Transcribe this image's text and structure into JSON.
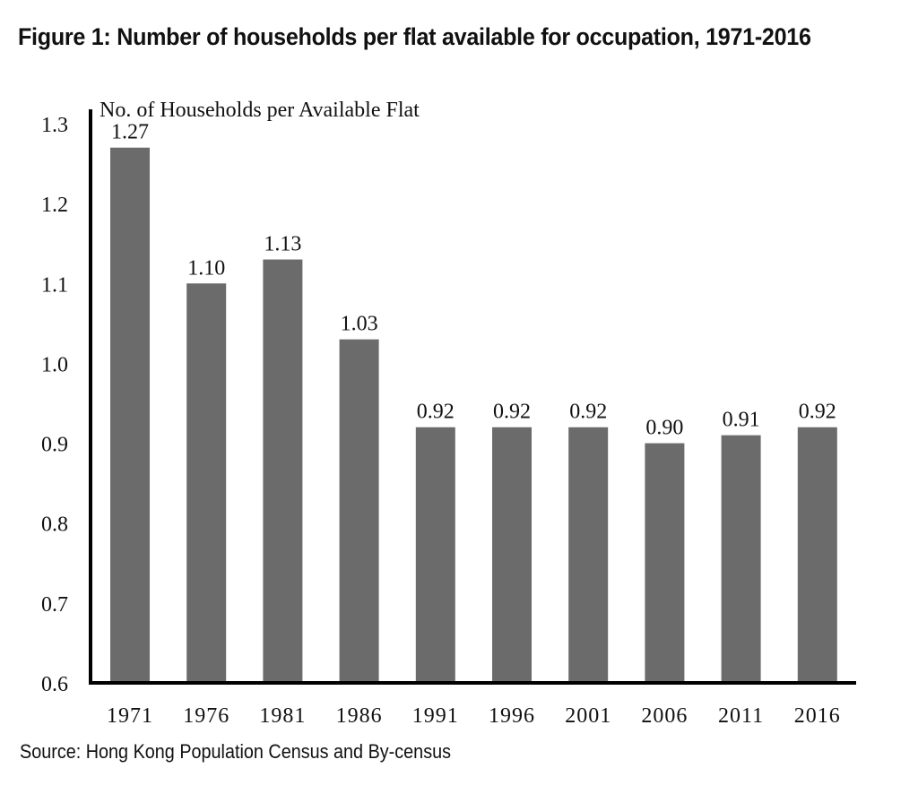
{
  "figure": {
    "title": "Figure 1: Number of households per flat available for occupation, 1971-2016",
    "source": "Source: Hong Kong Population Census and By-census"
  },
  "chart_data": {
    "type": "bar",
    "title": "Figure 1: Number of households per flat available for occupation, 1971-2016",
    "xlabel": "",
    "ylabel": "No. of Households per Available Flat",
    "categories": [
      "1971",
      "1976",
      "1981",
      "1986",
      "1991",
      "1996",
      "2001",
      "2006",
      "2011",
      "2016"
    ],
    "values": [
      1.27,
      1.1,
      1.13,
      1.03,
      0.92,
      0.92,
      0.92,
      0.9,
      0.91,
      0.92
    ],
    "value_labels": [
      "1.27",
      "1.10",
      "1.13",
      "1.03",
      "0.92",
      "0.92",
      "0.92",
      "0.90",
      "0.91",
      "0.92"
    ],
    "ylim": [
      0.6,
      1.3
    ],
    "yticks": [
      "0.6",
      "0.7",
      "0.8",
      "0.9",
      "1.0",
      "1.1",
      "1.2",
      "1.3"
    ],
    "grid": false,
    "legend": "none",
    "bar_color": "#6b6b6b"
  }
}
